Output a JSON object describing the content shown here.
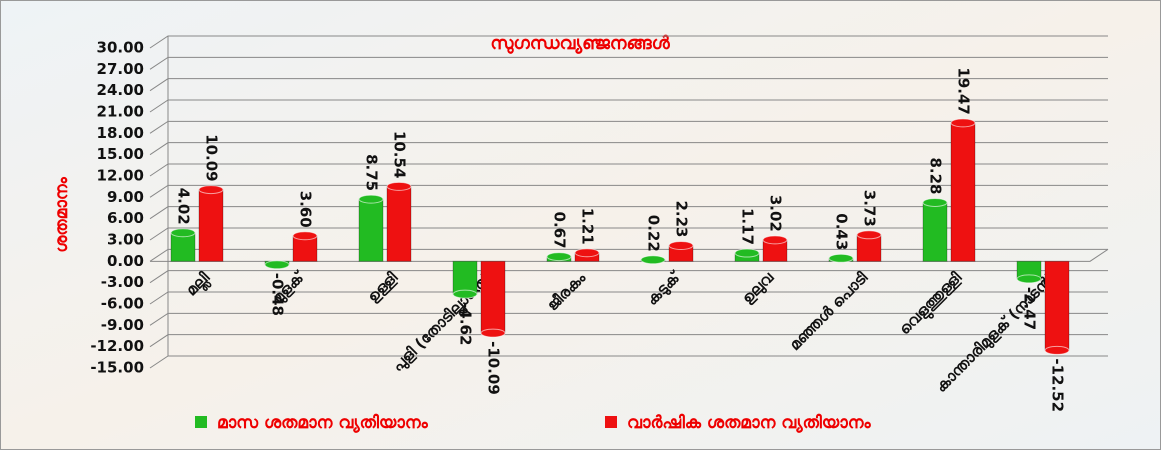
{
  "chart_data": {
    "type": "bar3d",
    "title": "സുഗന്ധവ്യഞ്ജനങ്ങൾ",
    "y_label": "ശതമാനം",
    "categories": [
      "മല്ലി",
      "മുളക്",
      "ഉള്ളി",
      "പുളി (തോടില്ലാതെ)",
      "ജീരകം",
      "കടുക്",
      "ഉലുവ",
      "മഞ്ഞൾ പൊടി",
      "വെളുത്തുള്ളി",
      "കാന്താരിമുളക് (നാടൻ)"
    ],
    "series": [
      {
        "name": "മാസ ശതമാന വ്യതിയാനം",
        "color": "#22bb22",
        "values": [
          4.02,
          -0.48,
          8.75,
          -4.62,
          0.67,
          0.22,
          1.17,
          0.43,
          8.28,
          -2.47
        ],
        "value_labels": [
          "4.02",
          "-0.48",
          "8.75",
          "-4.62",
          "0.67",
          "0.22",
          "1.17",
          "0.43",
          "8.28",
          "-2.47"
        ]
      },
      {
        "name": "വാർഷിക ശതമാന വ്യതിയാനം",
        "color": "#ee1111",
        "values": [
          10.09,
          3.6,
          10.54,
          -10.09,
          1.21,
          2.23,
          3.02,
          3.73,
          19.47,
          -12.52
        ],
        "value_labels": [
          "10.09",
          "3.60",
          "10.54",
          "-10.09",
          "1.21",
          "2.23",
          "3.02",
          "3.73",
          "19.47",
          "-12.52"
        ]
      }
    ],
    "ylim": [
      -15,
      30
    ],
    "yticks": [
      {
        "value": -15,
        "label": "-15.00"
      },
      {
        "value": -12,
        "label": "-12.00"
      },
      {
        "value": -9,
        "label": "-9.00"
      },
      {
        "value": -6,
        "label": "-6.00"
      },
      {
        "value": -3,
        "label": "-3.00"
      },
      {
        "value": 0,
        "label": "0.00"
      },
      {
        "value": 3,
        "label": "3.00"
      },
      {
        "value": 6,
        "label": "6.00"
      },
      {
        "value": 9,
        "label": "9.00"
      },
      {
        "value": 12,
        "label": "12.00"
      },
      {
        "value": 15,
        "label": "15.00"
      },
      {
        "value": 18,
        "label": "18.00"
      },
      {
        "value": 21,
        "label": "21.00"
      },
      {
        "value": 24,
        "label": "24.00"
      },
      {
        "value": 27,
        "label": "27.00"
      },
      {
        "value": 30,
        "label": "30.00"
      }
    ],
    "grid": true
  }
}
